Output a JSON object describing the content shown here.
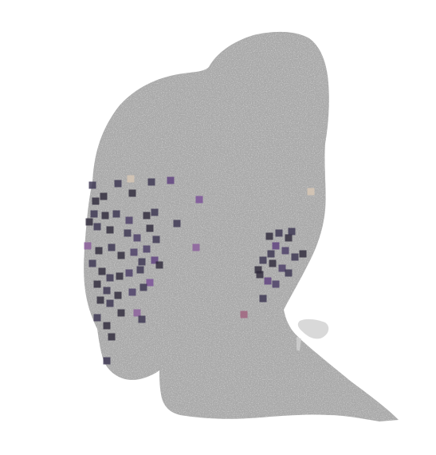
{
  "scene": {
    "subject": "head-point-cloud",
    "background_color": "#ffffff",
    "surface_color": "#a8a8a8",
    "speckle_color": "#f2f2f2",
    "marker_palette": [
      "#2e2a3a",
      "#3b3550",
      "#4a3d66",
      "#5e3f7f",
      "#7a4f99",
      "#8b5e9c",
      "#a0627e",
      "#d8c7b4"
    ]
  }
}
